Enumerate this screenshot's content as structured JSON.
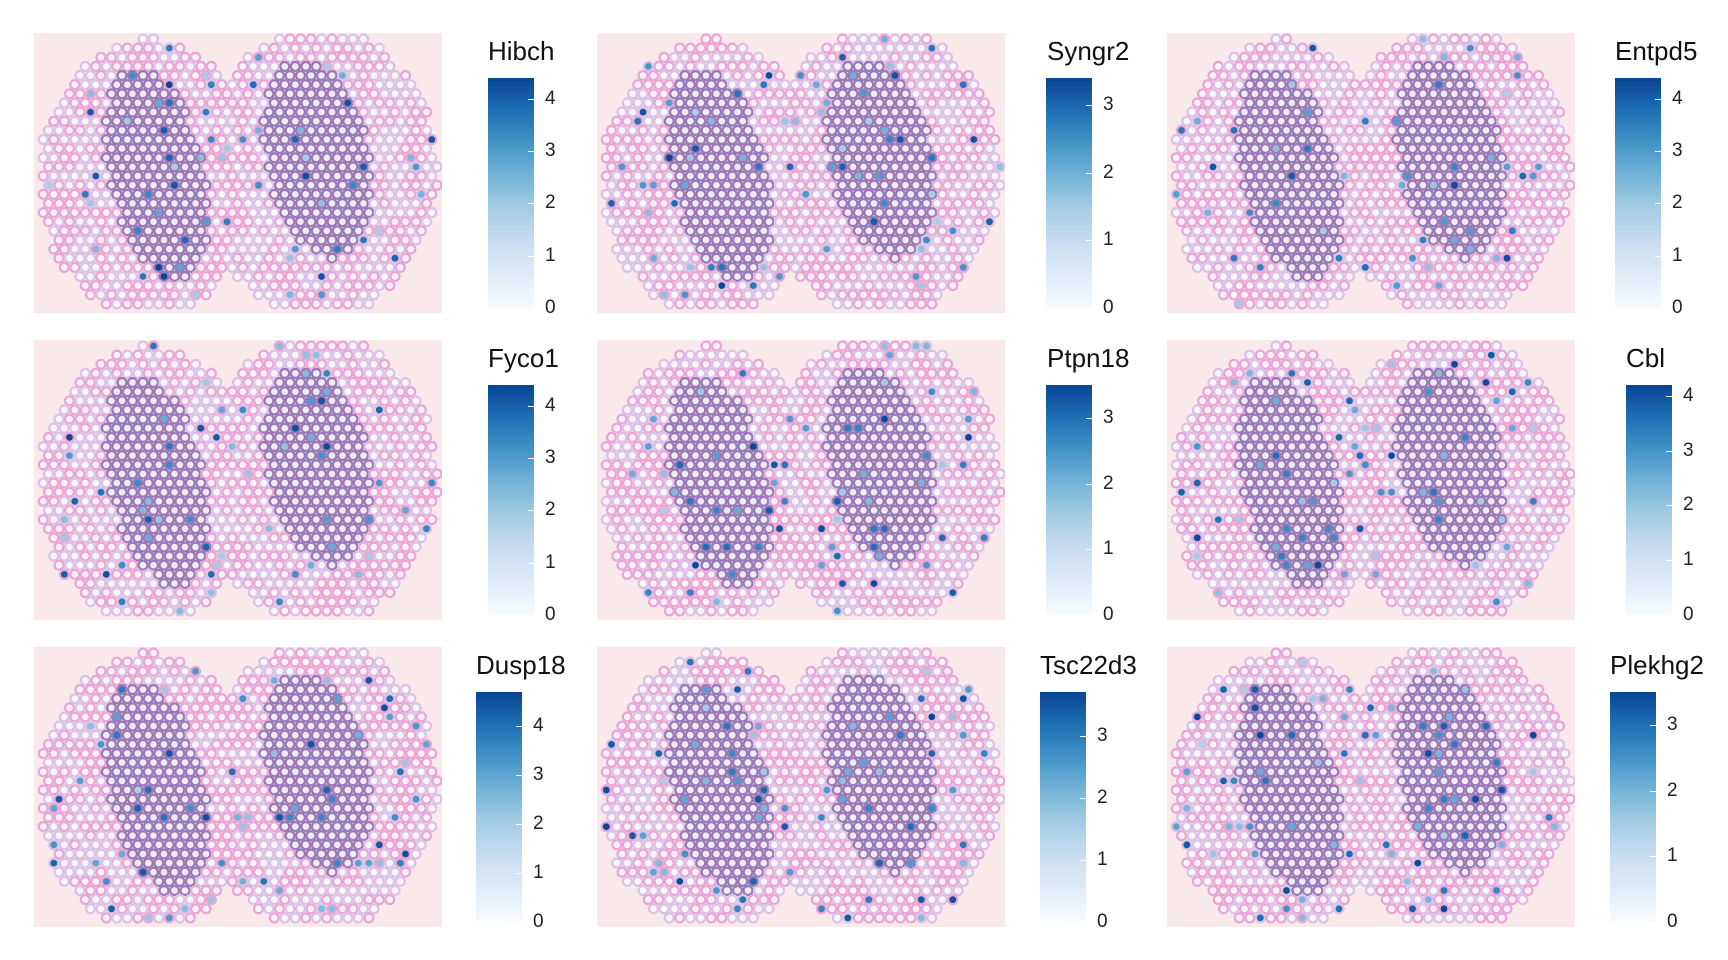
{
  "chart_data": [
    {
      "type": "heatmap",
      "title": "Hibch",
      "legend_ticks": [
        0,
        1,
        2,
        3,
        4
      ],
      "legend_max": 4.4,
      "colorscale": [
        "#f7fbff",
        "#08306b"
      ]
    },
    {
      "type": "heatmap",
      "title": "Syngr2",
      "legend_ticks": [
        0,
        1,
        2,
        3
      ],
      "legend_max": 3.4,
      "colorscale": [
        "#f7fbff",
        "#08306b"
      ]
    },
    {
      "type": "heatmap",
      "title": "Entpd5",
      "legend_ticks": [
        0,
        1,
        2,
        3,
        4
      ],
      "legend_max": 4.4,
      "colorscale": [
        "#f7fbff",
        "#08306b"
      ]
    },
    {
      "type": "heatmap",
      "title": "Fyco1",
      "legend_ticks": [
        0,
        1,
        2,
        3,
        4
      ],
      "legend_max": 4.4,
      "colorscale": [
        "#f7fbff",
        "#08306b"
      ]
    },
    {
      "type": "heatmap",
      "title": "Ptpn18",
      "legend_ticks": [
        0,
        1,
        2,
        3
      ],
      "legend_max": 3.5,
      "colorscale": [
        "#f7fbff",
        "#08306b"
      ]
    },
    {
      "type": "heatmap",
      "title": "Cbl",
      "legend_ticks": [
        0,
        1,
        2,
        3,
        4
      ],
      "legend_max": 4.2,
      "colorscale": [
        "#f7fbff",
        "#08306b"
      ]
    },
    {
      "type": "heatmap",
      "title": "Dusp18",
      "legend_ticks": [
        0,
        1,
        2,
        3,
        4
      ],
      "legend_max": 4.7,
      "colorscale": [
        "#f7fbff",
        "#08306b"
      ]
    },
    {
      "type": "heatmap",
      "title": "Tsc22d3",
      "legend_ticks": [
        0,
        1,
        2,
        3
      ],
      "legend_max": 3.7,
      "colorscale": [
        "#f7fbff",
        "#08306b"
      ]
    },
    {
      "type": "heatmap",
      "title": "Plekhg2",
      "legend_ticks": [
        0,
        1,
        2,
        3
      ],
      "legend_max": 3.5,
      "colorscale": [
        "#f7fbff",
        "#08306b"
      ]
    }
  ]
}
